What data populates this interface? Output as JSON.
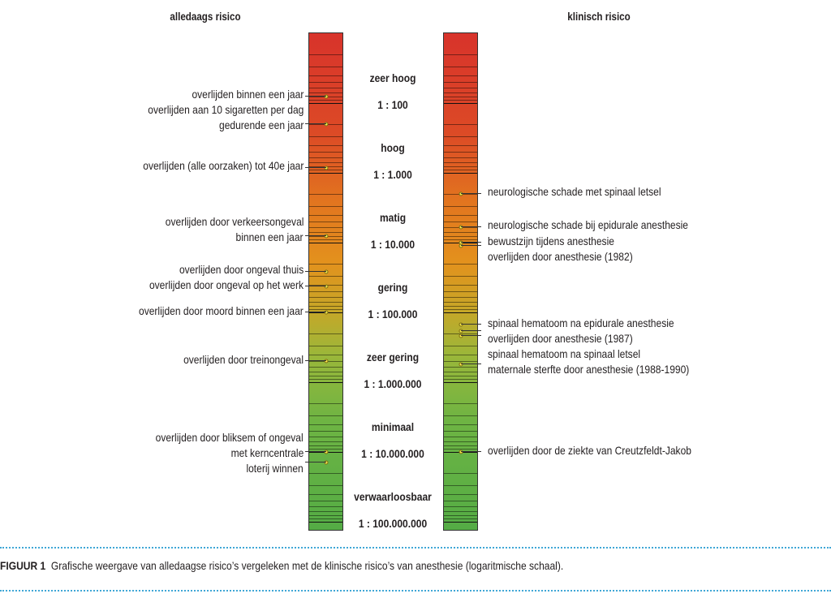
{
  "headers": {
    "left": "alledaags risico",
    "right": "klinisch risico"
  },
  "scale": {
    "type": "log",
    "top_exponent": 1,
    "bottom_exponent": 8,
    "levels": [
      {
        "label": "zeer hoog"
      },
      {
        "label": "hoog"
      },
      {
        "label": "matig"
      },
      {
        "label": "gering"
      },
      {
        "label": "zeer gering"
      },
      {
        "label": "minimaal"
      },
      {
        "label": "verwaarloosbaar"
      }
    ],
    "ticks": [
      "1 : 100",
      "1 : 1.000",
      "1 : 10.000",
      "1 : 100.000",
      "1 : 1.000.000",
      "1 : 10.000.000",
      "1 : 100.000.000"
    ]
  },
  "everyday_risks": [
    {
      "lines": [
        "overlijden binnen een jaar"
      ],
      "risk": 80
    },
    {
      "lines": [
        "overlijden aan 10 sigaretten per dag",
        "gedurende een jaar"
      ],
      "risk": 200
    },
    {
      "lines": [
        "overlijden (alle oorzaken) tot 40e jaar"
      ],
      "risk": 850
    },
    {
      "lines": [
        "overlijden door verkeersongeval",
        "binnen een jaar"
      ],
      "risk": 8000
    },
    {
      "lines": [
        "overlijden door ongeval thuis"
      ],
      "risk": 26000
    },
    {
      "lines": [
        "overlijden door ongeval op het werk"
      ],
      "risk": 43000
    },
    {
      "lines": [
        "overlijden door moord binnen een jaar"
      ],
      "risk": 100000
    },
    {
      "lines": [
        "overlijden door treinongeval"
      ],
      "risk": 500000
    },
    {
      "lines": [
        "overlijden door bliksem of ongeval",
        "met kerncentrale"
      ],
      "risk": 10000000
    },
    {
      "lines": [
        "loterij winnen"
      ],
      "risk": 14000000
    }
  ],
  "clinical_risks": [
    {
      "lines": [
        "neurologische schade met spinaal letsel"
      ],
      "risk": 2000
    },
    {
      "lines": [
        "neurologische schade bij epidurale anesthesie"
      ],
      "risk": 6000
    },
    {
      "lines": [
        "bewustzijn tijdens anesthesie"
      ],
      "risk": 10000
    },
    {
      "lines": [
        "overlijden door anesthesie (1982)"
      ],
      "risk": 11000
    },
    {
      "lines": [
        "spinaal hematoom na epidurale anesthesie"
      ],
      "risk": 150000
    },
    {
      "lines": [
        "overlijden door anesthesie (1987)"
      ],
      "risk": 185000
    },
    {
      "lines": [
        "spinaal hematoom na spinaal letsel"
      ],
      "risk": 220000
    },
    {
      "lines": [
        "maternale sterfte door anesthesie (1988-1990)"
      ],
      "risk": 550000
    },
    {
      "lines": [
        "overlijden door de ziekte van Creutzfeldt-Jakob"
      ],
      "risk": 10000000
    }
  ],
  "caption": {
    "label": "FIGUUR 1",
    "text": "Grafische weergave van alledaagse risico’s vergeleken met de klinische risico’s van anesthesie (logaritmische schaal)."
  },
  "colors": {
    "scale_top": "#d8332b",
    "scale_middle": "#e3911d",
    "scale_bottom": "#54ac45",
    "marker": "#f4e64a",
    "divider": "#3fa7d6"
  }
}
